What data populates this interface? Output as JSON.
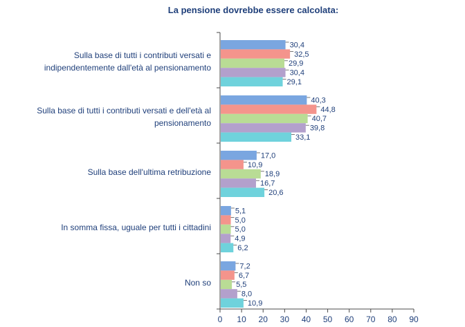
{
  "chart_data": {
    "type": "bar",
    "orientation": "horizontal",
    "title": "La pensione dovrebbe essere calcolata:",
    "categories": [
      [
        "Sulla base di tutti i contributi versati e",
        "indipendentemente dall'età al pensionamento"
      ],
      [
        "Sulla base di tutti i contributi versati e dell'età al",
        "pensionamento"
      ],
      [
        "Sulla base dell'ultima retribuzione"
      ],
      [
        "In somma fissa, uguale per tutti i cittadini"
      ],
      [
        "Non so"
      ]
    ],
    "series": [
      {
        "color": "#7aa6e0",
        "values": [
          30.4,
          40.3,
          17.0,
          5.1,
          7.2
        ],
        "labels": [
          "30,4",
          "40,3",
          "17,0",
          "5,1",
          "7,2"
        ]
      },
      {
        "color": "#f4948c",
        "values": [
          32.5,
          44.8,
          10.9,
          5.0,
          6.7
        ],
        "labels": [
          "32,5",
          "44,8",
          "10,9",
          "5,0",
          "6,7"
        ]
      },
      {
        "color": "#b9dc95",
        "values": [
          29.9,
          40.7,
          18.9,
          5.0,
          5.5
        ],
        "labels": [
          "29,9",
          "40,7",
          "18,9",
          "5,0",
          "5,5"
        ]
      },
      {
        "color": "#b3a0cc",
        "values": [
          30.4,
          39.8,
          16.7,
          4.9,
          8.0
        ],
        "labels": [
          "30,4",
          "39,8",
          "16,7",
          "4,9",
          "8,0"
        ]
      },
      {
        "color": "#6fd2dc",
        "values": [
          29.1,
          33.1,
          20.6,
          6.2,
          10.9
        ],
        "labels": [
          "29,1",
          "33,1",
          "20,6",
          "6,2",
          "10,9"
        ]
      }
    ],
    "xlim": [
      0,
      90
    ],
    "xticks": [
      0,
      10,
      20,
      30,
      40,
      50,
      60,
      70,
      80,
      90
    ],
    "grid": false,
    "legend": "none"
  }
}
